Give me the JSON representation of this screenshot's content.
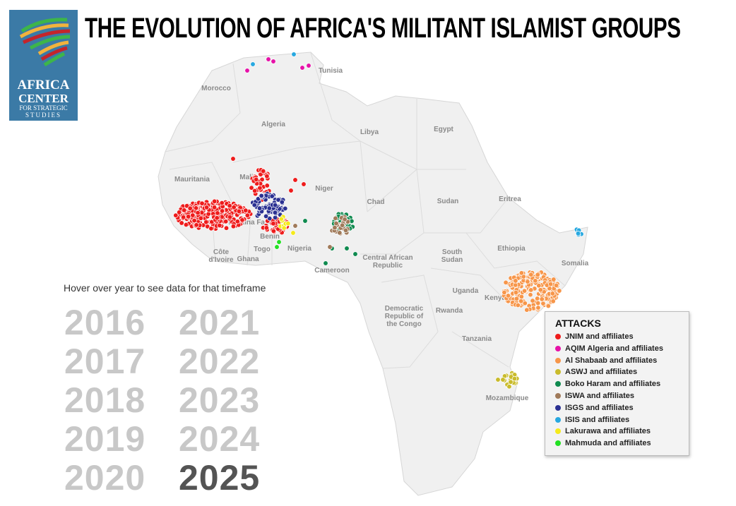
{
  "title": "THE EVOLUTION OF AFRICA'S MILITANT ISLAMIST GROUPS",
  "logo": {
    "line1": "AFRICA",
    "line2": "CENTER",
    "line3": "FOR STRATEGIC",
    "line4": "STUDIES"
  },
  "hover_hint": "Hover over year to see data for that timeframe",
  "years": [
    "2016",
    "2017",
    "2018",
    "2019",
    "2020",
    "2021",
    "2022",
    "2023",
    "2024",
    "2025"
  ],
  "selected_year": "2025",
  "countries": [
    "Tunisia",
    "Morocco",
    "Algeria",
    "Libya",
    "Egypt",
    "Mauritania",
    "Mali",
    "Niger",
    "Chad",
    "Sudan",
    "Eritrea",
    "Burkina Faso",
    "Benin",
    "Togo",
    "Nigeria",
    "Côte d'Ivoire",
    "Ghana",
    "Cameroon",
    "Central African Republic",
    "South Sudan",
    "Ethiopia",
    "Somalia",
    "Uganda",
    "Kenya",
    "Democratic Republic of the Congo",
    "Rwanda",
    "Tanzania",
    "Mozambique"
  ],
  "legend": {
    "title": "ATTACKS",
    "items": [
      {
        "label": "JNIM and affiliates",
        "color": "#ee1c1c"
      },
      {
        "label": "AQIM Algeria and affiliates",
        "color": "#e612a8"
      },
      {
        "label": "Al Shabaab and affiliates",
        "color": "#f7964a"
      },
      {
        "label": "ASWJ and affiliates",
        "color": "#c9bb2c"
      },
      {
        "label": "Boko Haram and affiliates",
        "color": "#0f8a4f"
      },
      {
        "label": "ISWA and affiliates",
        "color": "#a07a5a"
      },
      {
        "label": "ISGS and affiliates",
        "color": "#2b3192"
      },
      {
        "label": "ISIS and affiliates",
        "color": "#27a8e0"
      },
      {
        "label": "Lakurawa and affiliates",
        "color": "#f5ea1c"
      },
      {
        "label": "Mahmuda and affiliates",
        "color": "#22e022"
      }
    ]
  }
}
